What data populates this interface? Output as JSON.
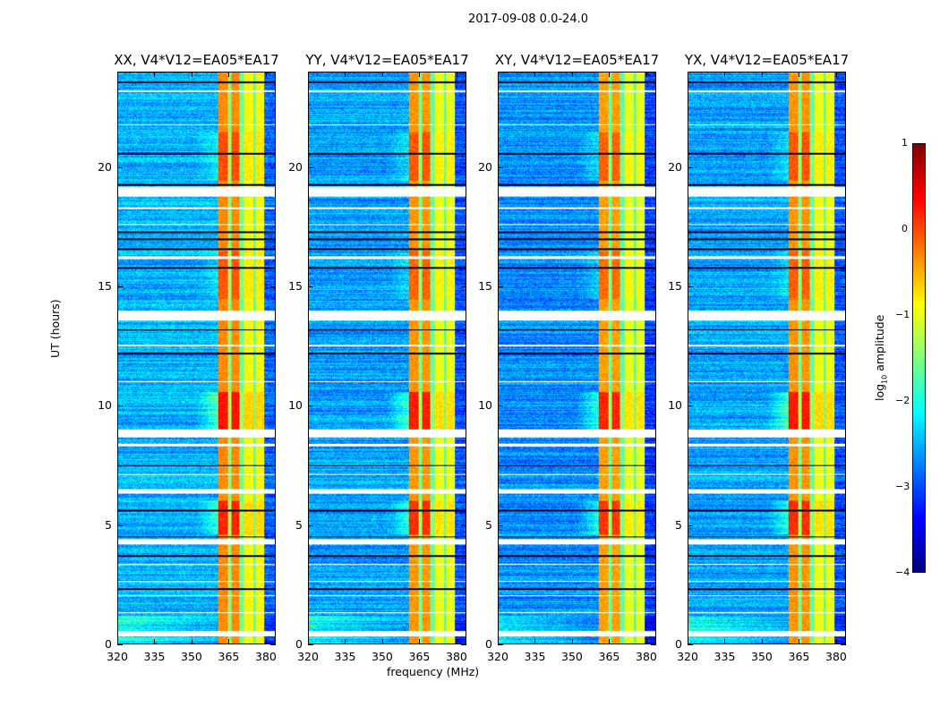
{
  "chart_data": {
    "type": "heatmap",
    "title": "2017-09-08 0.0-24.0",
    "xlabel": "frequency (MHz)",
    "ylabel": "UT (hours)",
    "xlim": [
      320,
      384
    ],
    "ylim": [
      0,
      24
    ],
    "xticks": [
      "320",
      "335",
      "350",
      "365",
      "380"
    ],
    "xtick_values": [
      320,
      335,
      350,
      365,
      380
    ],
    "yticks": [
      "0",
      "5",
      "10",
      "15",
      "20"
    ],
    "ytick_values": [
      0,
      5,
      10,
      15,
      20
    ],
    "colormap": "jet",
    "colorbar": {
      "label": "log10 amplitude",
      "label_main": "log",
      "label_sub": "10",
      "label_rest": " amplitude",
      "range": [
        -4,
        1
      ],
      "ticks": [
        "1",
        "0",
        "−1",
        "−2",
        "−3",
        "−4"
      ],
      "tick_values": [
        1,
        0,
        -1,
        -2,
        -3,
        -4
      ]
    },
    "panels": [
      {
        "title": "XX, V4*V12=EA05*EA17",
        "offset": 0.0
      },
      {
        "title": "YY, V4*V12=EA05*EA17",
        "offset": -0.2
      },
      {
        "title": "XY, V4*V12=EA05*EA17",
        "offset": -0.35
      },
      {
        "title": "YX, V4*V12=EA05*EA17",
        "offset": -0.15
      }
    ],
    "background_log_amplitude": -2.5,
    "frequency_bands": [
      {
        "from": 360.5,
        "to": 364.5,
        "value": -0.3
      },
      {
        "from": 364.5,
        "to": 366.0,
        "value": -1.5
      },
      {
        "from": 366.0,
        "to": 369.5,
        "value": -0.3
      },
      {
        "from": 369.5,
        "to": 371.0,
        "value": -1.6
      },
      {
        "from": 371.0,
        "to": 375.0,
        "value": -0.9
      },
      {
        "from": 375.0,
        "to": 376.0,
        "value": -1.8
      },
      {
        "from": 376.0,
        "to": 379.5,
        "value": -0.9
      }
    ],
    "time_enhancements": [
      {
        "from": 9.0,
        "to": 10.6,
        "value": 0.6
      },
      {
        "from": 4.6,
        "to": 6.0,
        "value": 0.5
      },
      {
        "from": 19.5,
        "to": 21.5,
        "value": 0.3
      },
      {
        "from": 14.5,
        "to": 16.5,
        "value": 0.25
      }
    ],
    "flagged_time_ranges": [
      [
        0.3,
        0.55
      ],
      [
        1.3,
        1.35
      ],
      [
        2.0,
        2.05
      ],
      [
        2.6,
        2.65
      ],
      [
        3.3,
        3.35
      ],
      [
        4.2,
        4.4
      ],
      [
        6.3,
        6.5
      ],
      [
        7.1,
        7.15
      ],
      [
        8.3,
        8.4
      ],
      [
        8.7,
        9.0
      ],
      [
        11.0,
        11.05
      ],
      [
        12.5,
        12.6
      ],
      [
        13.6,
        14.0
      ],
      [
        16.2,
        16.3
      ],
      [
        17.6,
        17.65
      ],
      [
        18.3,
        18.35
      ],
      [
        18.8,
        19.2
      ],
      [
        21.8,
        21.85
      ],
      [
        23.2,
        23.25
      ]
    ],
    "dark_time_rows": [
      2.3,
      3.7,
      4.5,
      5.6,
      7.5,
      12.2,
      13.2,
      15.8,
      16.6,
      17.0,
      17.3,
      19.3,
      20.6,
      23.6
    ]
  }
}
